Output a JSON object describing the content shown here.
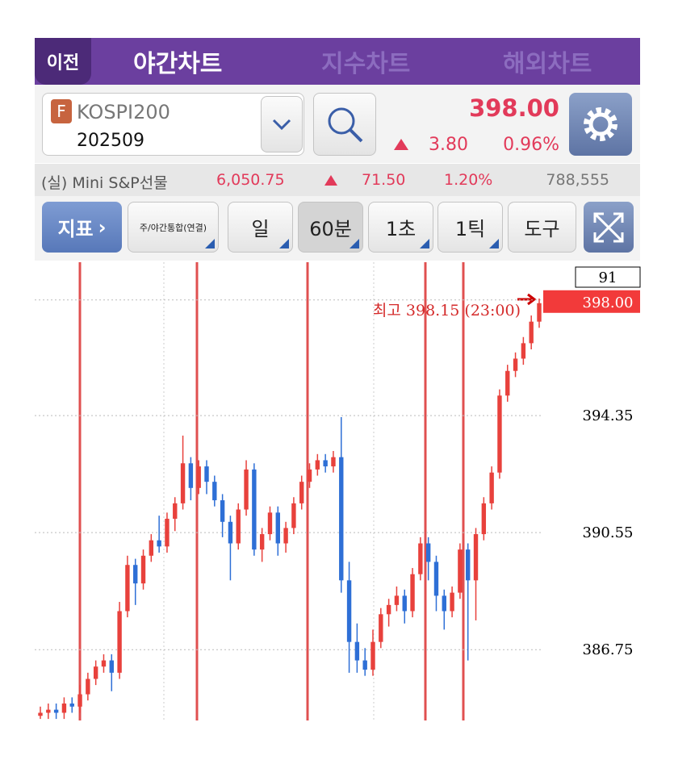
{
  "header": {
    "back": "이전",
    "tabs": [
      "야간차트",
      "지수차트",
      "해외차트"
    ]
  },
  "quote": {
    "badge": "F",
    "name": "KOSPI200",
    "code": "202509",
    "price": "398.00",
    "change": "3.80",
    "change_pct": "0.96%"
  },
  "ticker": {
    "name": "(실) Mini S&P선물",
    "price": "6,050.75",
    "change": "71.50",
    "change_pct": "1.20%",
    "volume": "788,555"
  },
  "toolbar": {
    "indicator": "지표",
    "session": "주/야간통합(연결)",
    "buttons": [
      "일",
      "60분",
      "1초",
      "1틱",
      "도구"
    ]
  },
  "chart_data": {
    "type": "candlestick",
    "ylim": [
      384.45,
      399.33
    ],
    "yticks": [
      394.35,
      390.55,
      386.75
    ],
    "current_price": {
      "value": 398,
      "label": "398.00"
    },
    "marker_label": "91",
    "annotation": "최고 398.15 (23:00)",
    "up_color": "#e8413c",
    "down_color": "#2e6fd6",
    "candles": [
      [
        384.6,
        384.9,
        384.5,
        384.7
      ],
      [
        384.7,
        385.0,
        384.5,
        384.8
      ],
      [
        384.8,
        385.0,
        384.5,
        384.7
      ],
      [
        384.7,
        385.2,
        384.5,
        385.0
      ],
      [
        385.0,
        385.2,
        384.7,
        384.9
      ],
      [
        384.9,
        385.6,
        384.7,
        385.3
      ],
      [
        385.3,
        386.0,
        385.1,
        385.8
      ],
      [
        385.8,
        386.4,
        385.6,
        386.2
      ],
      [
        386.2,
        386.6,
        386.0,
        386.4
      ],
      [
        386.4,
        386.6,
        385.4,
        386.0
      ],
      [
        386.0,
        388.3,
        385.8,
        388.0
      ],
      [
        388.0,
        389.8,
        387.8,
        389.5
      ],
      [
        389.5,
        389.7,
        388.2,
        388.9
      ],
      [
        388.9,
        390.0,
        388.7,
        389.8
      ],
      [
        389.8,
        390.5,
        389.6,
        390.3
      ],
      [
        390.3,
        391.1,
        389.9,
        390.1
      ],
      [
        390.1,
        391.2,
        389.9,
        391.0
      ],
      [
        391.0,
        391.7,
        390.6,
        391.5
      ],
      [
        391.5,
        393.7,
        391.3,
        392.8
      ],
      [
        392.8,
        393.0,
        391.6,
        392.0
      ],
      [
        392.0,
        392.9,
        391.8,
        392.7
      ],
      [
        392.7,
        392.9,
        391.8,
        392.2
      ],
      [
        392.2,
        392.4,
        391.4,
        391.6
      ],
      [
        391.6,
        391.8,
        390.4,
        390.9
      ],
      [
        390.9,
        391.1,
        389.0,
        390.2
      ],
      [
        390.2,
        391.5,
        390.0,
        391.3
      ],
      [
        391.3,
        392.9,
        391.1,
        392.6
      ],
      [
        392.6,
        392.8,
        389.8,
        390.0
      ],
      [
        390.0,
        390.7,
        389.6,
        390.5
      ],
      [
        390.5,
        391.4,
        390.3,
        391.2
      ],
      [
        391.2,
        391.4,
        389.8,
        390.2
      ],
      [
        390.2,
        390.9,
        389.9,
        390.7
      ],
      [
        390.7,
        391.7,
        390.5,
        391.5
      ],
      [
        391.5,
        392.4,
        391.3,
        392.2
      ],
      [
        392.2,
        392.8,
        392.0,
        392.6
      ],
      [
        392.6,
        393.1,
        392.4,
        392.9
      ],
      [
        392.9,
        393.1,
        392.5,
        392.7
      ],
      [
        392.7,
        393.2,
        392.5,
        393.0
      ],
      [
        393.0,
        394.3,
        388.6,
        389.0
      ],
      [
        389.0,
        389.6,
        386.0,
        387.0
      ],
      [
        387.0,
        387.6,
        386.0,
        386.4
      ],
      [
        386.4,
        386.8,
        385.9,
        386.1
      ],
      [
        386.1,
        387.4,
        385.9,
        387.0
      ],
      [
        387.0,
        388.1,
        386.8,
        387.9
      ],
      [
        387.9,
        388.4,
        387.5,
        388.2
      ],
      [
        388.2,
        388.8,
        388.0,
        388.5
      ],
      [
        388.5,
        388.7,
        387.6,
        388.0
      ],
      [
        388.0,
        389.4,
        387.8,
        389.2
      ],
      [
        389.2,
        390.4,
        389.0,
        390.2
      ],
      [
        390.2,
        390.4,
        389.0,
        389.6
      ],
      [
        389.6,
        389.8,
        388.0,
        388.5
      ],
      [
        388.5,
        388.7,
        387.4,
        388.0
      ],
      [
        388.0,
        388.8,
        387.8,
        388.6
      ],
      [
        388.6,
        390.2,
        388.4,
        390.0
      ],
      [
        390.0,
        390.2,
        386.4,
        389.0
      ],
      [
        389.0,
        390.7,
        387.7,
        390.5
      ],
      [
        390.5,
        391.7,
        390.3,
        391.5
      ],
      [
        391.5,
        392.7,
        391.3,
        392.5
      ],
      [
        392.5,
        395.2,
        392.3,
        395.0
      ],
      [
        395.0,
        396.0,
        394.8,
        395.8
      ],
      [
        395.8,
        396.4,
        395.6,
        396.2
      ],
      [
        396.2,
        396.9,
        396.0,
        396.7
      ],
      [
        396.7,
        397.6,
        396.5,
        397.4
      ],
      [
        397.4,
        398.15,
        397.2,
        398.0
      ]
    ]
  }
}
